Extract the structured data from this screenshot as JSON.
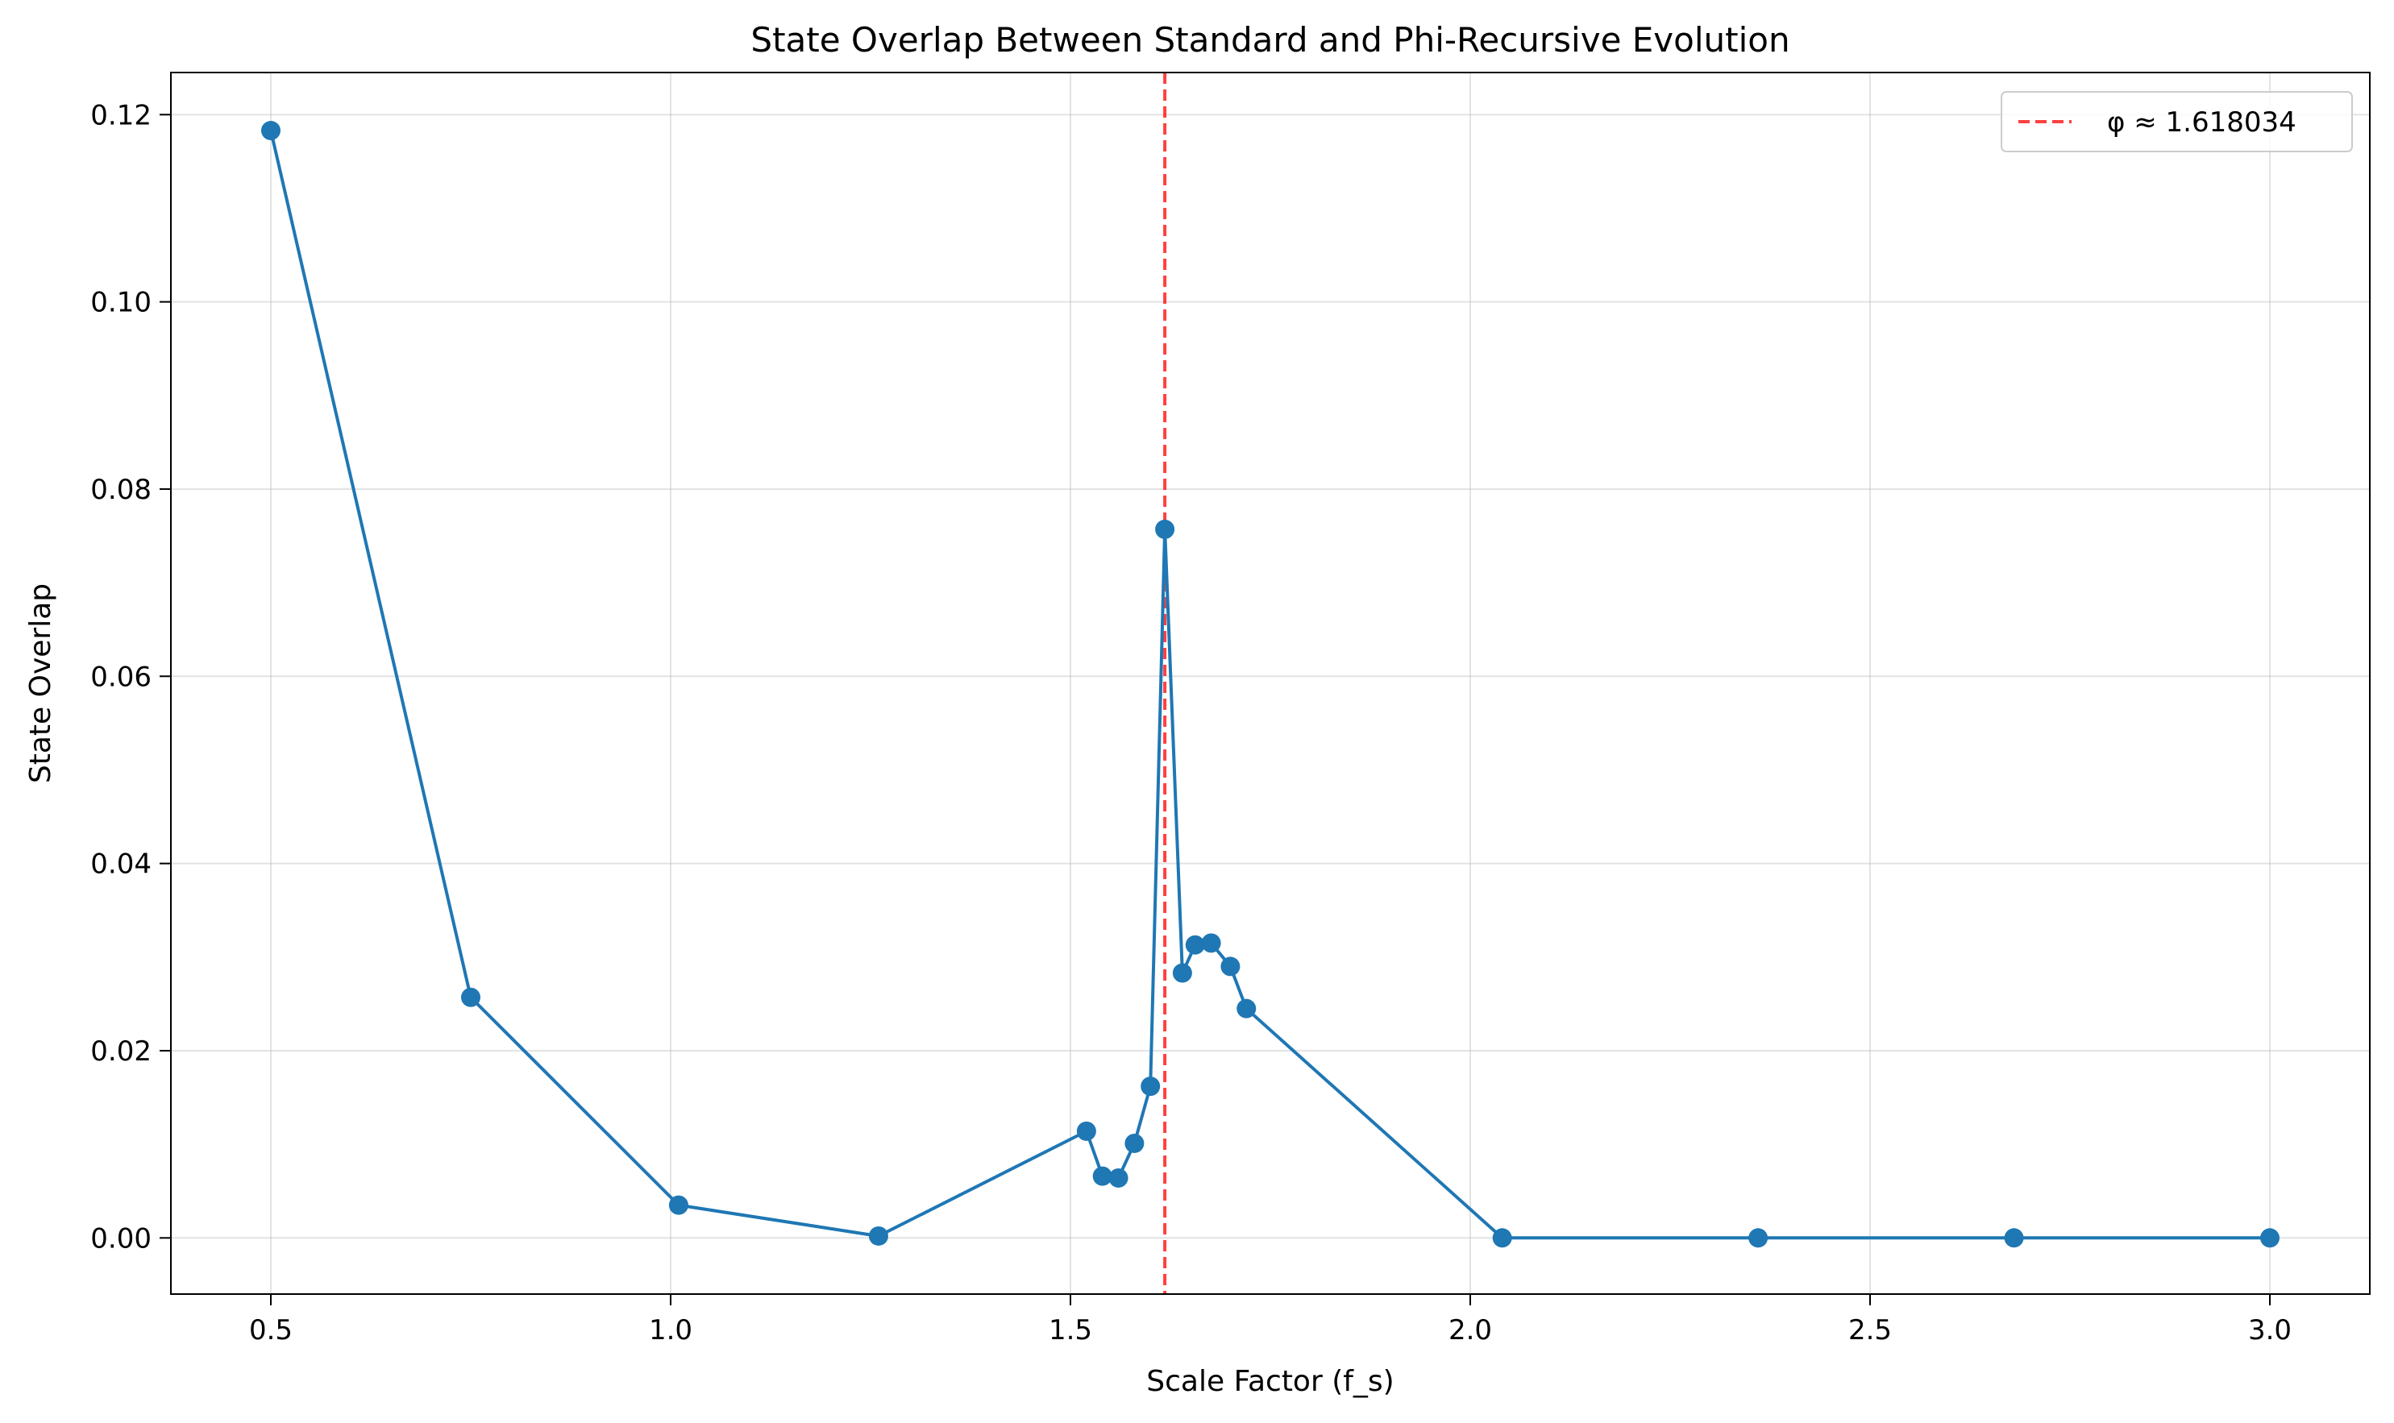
{
  "chart_data": {
    "type": "line",
    "title": "State Overlap Between Standard and Phi-Recursive Evolution",
    "xlabel": "Scale Factor (f_s)",
    "ylabel": "State Overlap",
    "xlim": [
      0.375,
      3.125
    ],
    "ylim": [
      -0.006,
      0.1245
    ],
    "xticks": [
      0.5,
      1.0,
      1.5,
      2.0,
      2.5,
      3.0
    ],
    "xtick_labels": [
      "0.5",
      "1.0",
      "1.5",
      "2.0",
      "2.5",
      "3.0"
    ],
    "yticks": [
      0.0,
      0.02,
      0.04,
      0.06,
      0.08,
      0.1,
      0.12
    ],
    "ytick_labels": [
      "0.00",
      "0.02",
      "0.04",
      "0.06",
      "0.08",
      "0.10",
      "0.12"
    ],
    "grid": true,
    "legend_position": "top-right",
    "series": [
      {
        "color": "#1f77b4",
        "marker": "circle",
        "x": [
          0.5,
          0.75,
          1.01,
          1.26,
          1.52,
          1.54,
          1.56,
          1.58,
          1.6,
          1.618034,
          1.64,
          1.656,
          1.676,
          1.7,
          1.72,
          2.04,
          2.36,
          2.68,
          3.0
        ],
        "y": [
          0.1183,
          0.0257,
          0.0035,
          0.0002,
          0.0114,
          0.0066,
          0.0064,
          0.0101,
          0.0162,
          0.0757,
          0.0283,
          0.0313,
          0.0315,
          0.029,
          0.0245,
          0.0,
          0.0,
          0.0,
          0.0
        ]
      }
    ],
    "reference_line": {
      "orientation": "vertical",
      "x": 1.618034,
      "color": "#ff0000",
      "style": "dashed",
      "label": "φ ≈ 1.618034"
    }
  }
}
